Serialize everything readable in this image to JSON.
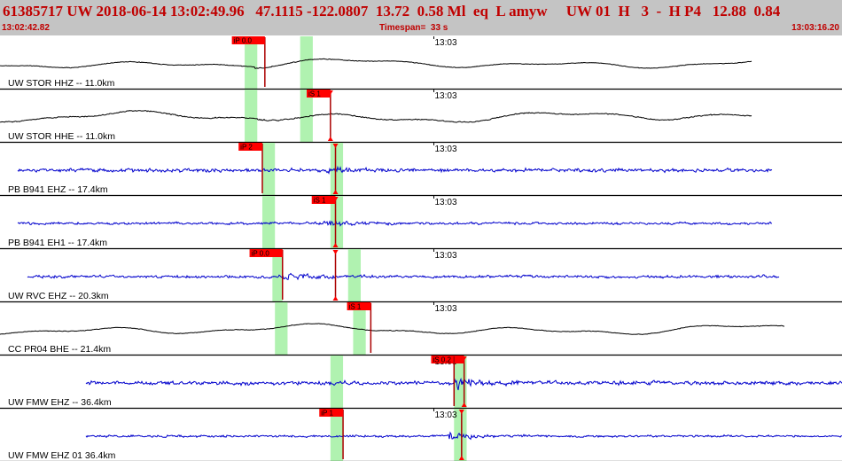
{
  "header": {
    "info_line": "61385717 UW 2018-06-14 13:02:49.96   47.1115 -122.0807  13.72  0.58 Ml  eq  L amyw     UW 01  H   3  -  H P4   12.88  0.84",
    "start_time": "13:02:42.82",
    "timespan": "Timespan=  33 s",
    "end_time": "13:03:16.20"
  },
  "colors": {
    "header_bg": "#c4c4c4",
    "header_text": "#c00000",
    "trace_black": "#000000",
    "trace_blue": "#0000cc",
    "pick_red": "#ff0000",
    "window_green": "#b0f2b0"
  },
  "time_axis": {
    "start_s": 0,
    "span_s": 33.38
  },
  "traces": [
    {
      "label": "UW STOR HHZ -- 11.0km",
      "minute_label": "13:03",
      "color": "black",
      "data_start_s": 0.0,
      "data_end_s": 29.8,
      "amp": 0.22,
      "lowfreq": 1.0,
      "noise": 0.12,
      "event": 0.75,
      "event_s": 10.1,
      "minute_mark_s": 17.2,
      "green": [
        [
          9.7,
          10.2
        ],
        [
          11.9,
          12.4
        ]
      ],
      "picks": [
        {
          "label": "iP 0.0",
          "t": 10.5,
          "marker": false
        }
      ]
    },
    {
      "label": "UW STOR HHE -- 11.0km",
      "minute_label": "13:03",
      "color": "black",
      "data_start_s": 0.0,
      "data_end_s": 29.8,
      "amp": 0.26,
      "lowfreq": 1.0,
      "noise": 0.15,
      "event": 0.7,
      "event_s": 10.2,
      "minute_mark_s": 17.2,
      "green": [
        [
          9.7,
          10.2
        ],
        [
          11.9,
          12.4
        ]
      ],
      "picks": [
        {
          "label": "iS 1",
          "t": 13.1,
          "marker": true
        }
      ]
    },
    {
      "label": "PB B941 EHZ -- 17.4km",
      "minute_label": "13:03",
      "color": "blue",
      "data_start_s": 0.7,
      "data_end_s": 30.6,
      "amp": 0.13,
      "lowfreq": 0.05,
      "noise": 1.0,
      "event": 1.4,
      "event_s": 12.9,
      "minute_mark_s": 17.2,
      "green": [
        [
          10.4,
          10.9
        ],
        [
          13.1,
          13.6
        ]
      ],
      "picks": [
        {
          "label": "iP 2",
          "t": 10.4,
          "marker": false
        },
        {
          "label": "",
          "t": 13.3,
          "marker": true
        }
      ]
    },
    {
      "label": "PB B941 EH1 -- 17.4km",
      "minute_label": "13:03",
      "color": "blue",
      "data_start_s": 0.7,
      "data_end_s": 30.6,
      "amp": 0.09,
      "lowfreq": 0.05,
      "noise": 1.0,
      "event": 2.4,
      "event_s": 12.8,
      "minute_mark_s": 17.2,
      "green": [
        [
          10.4,
          10.9
        ],
        [
          13.1,
          13.6
        ]
      ],
      "picks": [
        {
          "label": "iS 1",
          "t": 13.3,
          "marker": true
        }
      ]
    },
    {
      "label": "UW RVC EHZ -- 20.3km",
      "minute_label": "13:03",
      "color": "blue",
      "data_start_s": 1.1,
      "data_end_s": 30.9,
      "amp": 0.1,
      "lowfreq": 0.1,
      "noise": 1.0,
      "event": 2.3,
      "event_s": 11.2,
      "minute_mark_s": 17.2,
      "green": [
        [
          10.8,
          11.2
        ],
        [
          13.8,
          14.3
        ]
      ],
      "picks": [
        {
          "label": "iP 0.0",
          "t": 11.2,
          "marker": false
        },
        {
          "label": "",
          "t": 13.3,
          "marker": true
        }
      ]
    },
    {
      "label": "CC PR04 BHE -- 21.4km",
      "minute_label": "13:03",
      "color": "black",
      "data_start_s": 0.0,
      "data_end_s": 31.1,
      "amp": 0.25,
      "lowfreq": 1.0,
      "noise": 0.1,
      "event": 0.6,
      "event_s": 14.3,
      "minute_mark_s": 17.2,
      "green": [
        [
          10.9,
          11.4
        ],
        [
          14.0,
          14.5
        ]
      ],
      "picks": [
        {
          "label": "iS 1",
          "t": 14.7,
          "marker": false
        }
      ]
    },
    {
      "label": "UW FMW EHZ -- 36.4km",
      "minute_label": "13:03",
      "color": "blue",
      "data_start_s": 3.4,
      "data_end_s": 33.4,
      "amp": 0.14,
      "lowfreq": 0.05,
      "noise": 1.0,
      "event": 2.4,
      "event_s": 18.0,
      "minute_mark_s": 17.2,
      "green": [
        [
          13.1,
          13.6
        ],
        [
          18.0,
          18.5
        ]
      ],
      "picks": [
        {
          "label": "iS 0.2",
          "t": 18.4,
          "marker": true
        },
        {
          "label": "",
          "t": 18.0,
          "marker": false
        }
      ]
    },
    {
      "label": "UW FMW EHZ 01 36.4km",
      "minute_label": "13:03",
      "color": "blue",
      "data_start_s": 3.4,
      "data_end_s": 33.4,
      "amp": 0.08,
      "lowfreq": 0.05,
      "noise": 1.0,
      "event": 3.6,
      "event_s": 17.8,
      "minute_mark_s": 17.2,
      "green": [
        [
          13.1,
          13.6
        ],
        [
          18.0,
          18.5
        ]
      ],
      "picks": [
        {
          "label": "iP 1",
          "t": 13.6,
          "marker": false
        },
        {
          "label": "",
          "t": 18.3,
          "marker": true
        }
      ]
    }
  ]
}
